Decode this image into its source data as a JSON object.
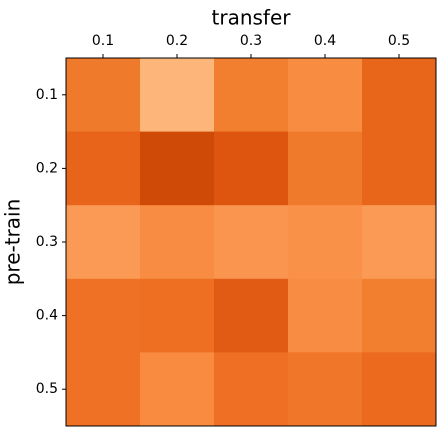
{
  "chart_data": {
    "type": "heatmap",
    "x_label": "transfer",
    "y_label": "pre-train",
    "x_categories": [
      "0.1",
      "0.2",
      "0.3",
      "0.4",
      "0.5"
    ],
    "y_categories": [
      "0.1",
      "0.2",
      "0.3",
      "0.4",
      "0.5"
    ],
    "colors": [
      [
        "#f07a2c",
        "#fdb57a",
        "#f27f30",
        "#f88d42",
        "#e8661a"
      ],
      [
        "#e8641a",
        "#cf4a06",
        "#de5510",
        "#f07a2c",
        "#e8661a"
      ],
      [
        "#fb9a55",
        "#f88c42",
        "#fa9550",
        "#f99148",
        "#fb9a55"
      ],
      [
        "#ef7125",
        "#ee6e22",
        "#e15b14",
        "#f88c42",
        "#f27f30"
      ],
      [
        "#ef7125",
        "#f98b40",
        "#ef7025",
        "#f07629",
        "#eb6a1e"
      ]
    ]
  }
}
